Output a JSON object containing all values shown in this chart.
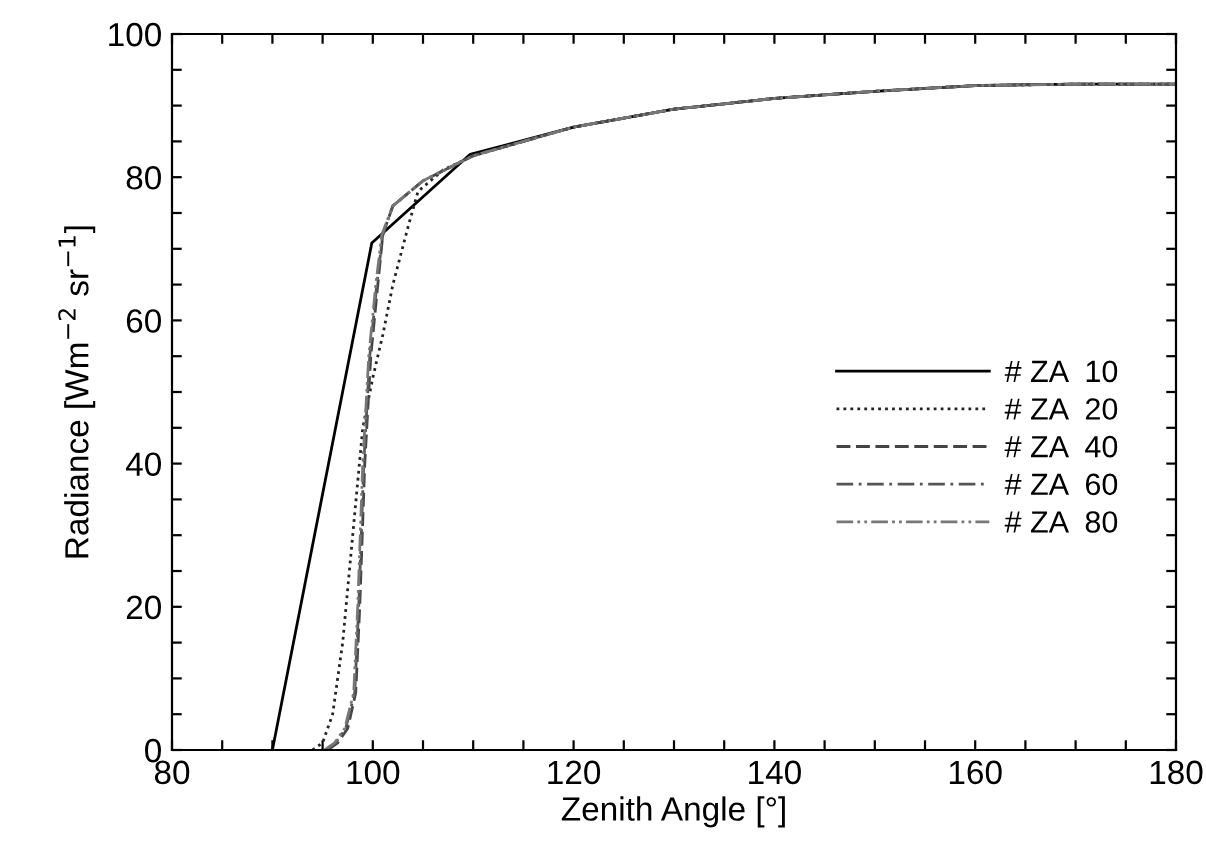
{
  "chart_data": {
    "type": "line",
    "xlabel": "Zenith Angle [°]",
    "ylabel": "Radiance [Wm$^{−2}$ sr$^{−1}$]",
    "xlim": [
      80,
      180
    ],
    "ylim": [
      0,
      100
    ],
    "xticks": [
      80,
      {
        "value": 85,
        "label": null
      },
      {
        "value": 90,
        "label": null
      },
      {
        "value": 95,
        "label": null
      },
      100,
      {
        "value": 105,
        "label": null
      },
      {
        "value": 110,
        "label": null
      },
      {
        "value": 115,
        "label": null
      },
      120,
      {
        "value": 125,
        "label": null
      },
      {
        "value": 130,
        "label": null
      },
      {
        "value": 135,
        "label": null
      },
      140,
      {
        "value": 145,
        "label": null
      },
      {
        "value": 150,
        "label": null
      },
      {
        "value": 155,
        "label": null
      },
      160,
      {
        "value": 165,
        "label": null
      },
      {
        "value": 170,
        "label": null
      },
      {
        "value": 175,
        "label": null
      },
      180
    ],
    "yticks": [
      0,
      {
        "value": 5,
        "label": null
      },
      {
        "value": 10,
        "label": null
      },
      {
        "value": 15,
        "label": null
      },
      20,
      {
        "value": 25,
        "label": null
      },
      {
        "value": 30,
        "label": null
      },
      {
        "value": 35,
        "label": null
      },
      40,
      {
        "value": 45,
        "label": null
      },
      {
        "value": 50,
        "label": null
      },
      {
        "value": 55,
        "label": null
      },
      60,
      {
        "value": 65,
        "label": null
      },
      {
        "value": 70,
        "label": null
      },
      {
        "value": 75,
        "label": null
      },
      80,
      {
        "value": 85,
        "label": null
      },
      {
        "value": 90,
        "label": null
      },
      {
        "value": 95,
        "label": null
      },
      100
    ],
    "grid": false,
    "legend": "right",
    "marker": "none",
    "series": [
      {
        "name": "# ZA  10",
        "color": "#000000",
        "line_style": "solid",
        "x": [
          90,
          99.9,
          109.7,
          120,
          130,
          140,
          150,
          160,
          170,
          180
        ],
        "values": [
          0,
          70.8,
          83.2,
          87,
          89.5,
          91,
          92,
          92.8,
          93,
          93
        ]
      },
      {
        "name": "# ZA  20",
        "color": "#222222",
        "line_style": "dotted",
        "x": [
          94,
          95,
          96,
          97,
          98,
          99,
          100,
          101,
          102,
          103.5,
          104.5,
          107,
          110,
          120,
          130,
          140,
          150,
          160,
          170,
          180
        ],
        "values": [
          0,
          1,
          5,
          15,
          30,
          45,
          52,
          58,
          65,
          73,
          78,
          81,
          83,
          87,
          89.5,
          91,
          92,
          92.8,
          93,
          93
        ]
      },
      {
        "name": "# ZA  40",
        "color": "#444444",
        "line_style": "dashed",
        "x": [
          95.5,
          96.5,
          97.5,
          98.3,
          98.7,
          99.2,
          99.8,
          100.5,
          101,
          102,
          105,
          110,
          120,
          130,
          140,
          150,
          160,
          170,
          180
        ],
        "values": [
          0,
          1,
          3,
          8,
          20,
          40,
          55,
          65,
          72,
          76,
          79.5,
          83,
          87,
          89.5,
          91,
          92,
          92.8,
          93,
          93
        ]
      },
      {
        "name": "# ZA  60",
        "color": "#555555",
        "line_style": "dashdot",
        "x": [
          95.3,
          96.3,
          97.3,
          98.2,
          98.6,
          99.1,
          99.7,
          100.4,
          101,
          102,
          105,
          110,
          120,
          130,
          140,
          150,
          160,
          170,
          180
        ],
        "values": [
          0,
          1,
          3,
          8,
          20,
          40,
          55,
          65,
          72,
          76,
          79.5,
          83,
          87,
          89.5,
          91,
          92,
          92.8,
          93,
          93
        ]
      },
      {
        "name": "# ZA  80",
        "color": "#777777",
        "line_style": "dashdotdot",
        "x": [
          95.2,
          96.2,
          97.2,
          98.1,
          98.5,
          99,
          99.6,
          100.3,
          100.9,
          102,
          105,
          110,
          120,
          130,
          140,
          150,
          160,
          170,
          180
        ],
        "values": [
          0,
          1,
          3,
          8,
          20,
          40,
          55,
          65,
          72,
          76,
          79.5,
          83,
          87,
          89.5,
          91,
          92,
          92.8,
          93,
          93
        ]
      }
    ]
  }
}
